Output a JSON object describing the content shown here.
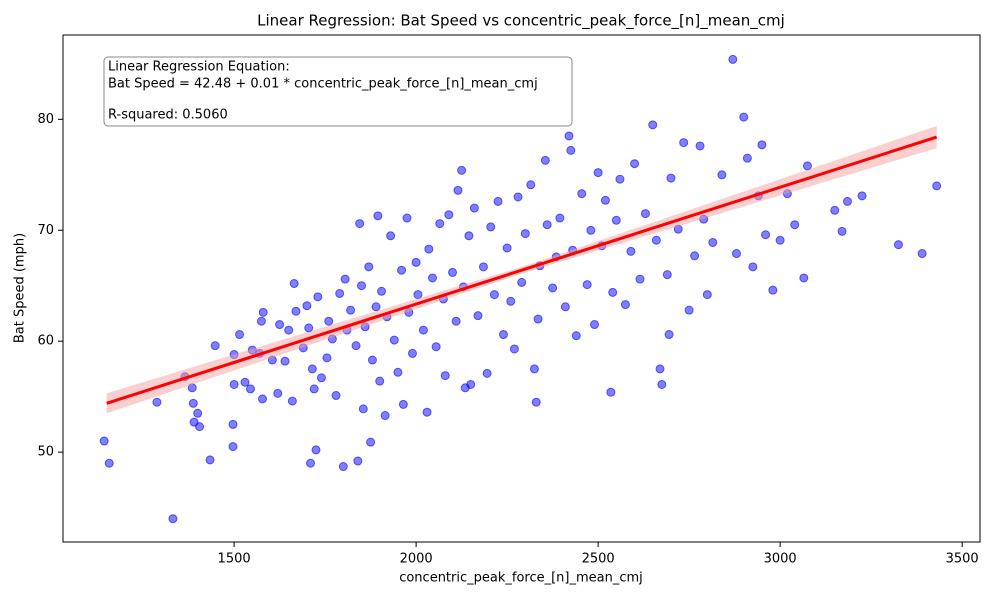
{
  "chart_data": {
    "type": "scatter",
    "title": "Linear Regression: Bat Speed vs concentric_peak_force_[n]_mean_cmj",
    "x_label": "concentric_peak_force_[n]_mean_cmj",
    "y_label": "Bat Speed (mph)",
    "annotation": [
      "Linear Regression Equation:",
      "Bat Speed = 42.48 + 0.01 * concentric_peak_force_[n]_mean_cmj",
      "R-squared: 0.5060"
    ],
    "xlim": [
      1030,
      3549
    ],
    "ylim": [
      41.9,
      87.6
    ],
    "xticks": [
      1500,
      2000,
      2500,
      3000,
      3500
    ],
    "yticks": [
      50,
      60,
      70,
      80
    ],
    "color": "blue",
    "x": [
      1143,
      1157,
      1288,
      1332,
      1365,
      1385,
      1388,
      1390,
      1400,
      1405,
      1434,
      1448,
      1497,
      1497,
      1500,
      1500,
      1515,
      1530,
      1545,
      1550,
      1570,
      1575,
      1580,
      1578,
      1605,
      1620,
      1625,
      1640,
      1650,
      1660,
      1665,
      1670,
      1690,
      1700,
      1705,
      1710,
      1715,
      1720,
      1725,
      1730,
      1740,
      1755,
      1760,
      1770,
      1780,
      1790,
      1800,
      1805,
      1810,
      1820,
      1835,
      1840,
      1845,
      1850,
      1855,
      1860,
      1870,
      1875,
      1880,
      1890,
      1895,
      1900,
      1905,
      1915,
      1920,
      1930,
      1940,
      1950,
      1960,
      1965,
      1975,
      1980,
      1990,
      2000,
      2005,
      2020,
      2030,
      2035,
      2045,
      2055,
      2065,
      2075,
      2080,
      2090,
      2100,
      2110,
      2115,
      2125,
      2130,
      2135,
      2145,
      2150,
      2160,
      2170,
      2185,
      2195,
      2205,
      2215,
      2225,
      2240,
      2250,
      2260,
      2270,
      2280,
      2290,
      2300,
      2315,
      2325,
      2330,
      2335,
      2340,
      2355,
      2360,
      2375,
      2385,
      2395,
      2410,
      2420,
      2425,
      2430,
      2440,
      2455,
      2470,
      2480,
      2490,
      2500,
      2510,
      2520,
      2535,
      2540,
      2550,
      2560,
      2575,
      2590,
      2600,
      2615,
      2630,
      2650,
      2660,
      2670,
      2675,
      2690,
      2695,
      2700,
      2720,
      2735,
      2750,
      2765,
      2780,
      2790,
      2800,
      2815,
      2840,
      2870,
      2880,
      2900,
      2910,
      2925,
      2940,
      2950,
      2960,
      2980,
      3000,
      3020,
      3040,
      3065,
      3075,
      3150,
      3170,
      3185,
      3225,
      3325,
      3390,
      3430
    ],
    "values": [
      51.0,
      49.0,
      54.5,
      44.0,
      56.8,
      55.8,
      54.4,
      52.7,
      53.5,
      52.3,
      49.3,
      59.6,
      52.5,
      50.5,
      56.1,
      58.8,
      60.6,
      56.3,
      55.7,
      59.2,
      58.9,
      61.8,
      62.6,
      54.8,
      58.3,
      55.3,
      61.5,
      58.2,
      61.0,
      54.6,
      65.2,
      62.7,
      59.4,
      63.2,
      61.2,
      49.0,
      57.5,
      55.7,
      50.2,
      64.0,
      56.7,
      58.5,
      61.8,
      60.2,
      55.1,
      64.3,
      48.7,
      65.6,
      61.0,
      62.8,
      59.6,
      49.2,
      70.6,
      65.0,
      53.9,
      61.3,
      66.7,
      50.9,
      58.3,
      63.1,
      71.3,
      56.4,
      64.5,
      53.3,
      62.2,
      69.5,
      60.1,
      57.2,
      66.4,
      54.3,
      71.1,
      62.6,
      58.9,
      67.1,
      64.2,
      61.0,
      53.6,
      68.3,
      65.7,
      59.5,
      70.6,
      63.8,
      56.9,
      71.4,
      66.2,
      61.8,
      73.6,
      75.4,
      64.9,
      55.8,
      69.5,
      56.1,
      72.0,
      62.3,
      66.7,
      57.1,
      70.3,
      64.2,
      72.6,
      60.6,
      68.4,
      63.6,
      59.3,
      73.0,
      65.3,
      69.7,
      74.1,
      57.5,
      54.5,
      62.0,
      66.8,
      76.3,
      70.5,
      64.8,
      67.6,
      71.1,
      63.1,
      78.5,
      77.2,
      68.2,
      60.5,
      73.3,
      65.1,
      70.0,
      61.5,
      75.2,
      68.6,
      72.7,
      55.4,
      64.4,
      70.9,
      74.6,
      63.3,
      68.1,
      76.0,
      65.6,
      71.5,
      79.5,
      69.1,
      57.5,
      56.1,
      66.0,
      60.6,
      74.7,
      70.1,
      77.9,
      62.8,
      67.7,
      77.6,
      71.0,
      64.2,
      68.9,
      75.0,
      85.4,
      67.9,
      80.2,
      76.5,
      66.7,
      73.1,
      77.7,
      69.6,
      64.6,
      69.1,
      73.3,
      70.5,
      65.7,
      75.8,
      71.8,
      69.9,
      72.6,
      73.1,
      68.7,
      67.9,
      74.0
    ],
    "fit": {
      "x": [
        1150,
        3430
      ],
      "y": [
        54.4,
        78.4
      ],
      "color": "red"
    },
    "band": {
      "x": [
        1150,
        2300,
        3430
      ],
      "lower": [
        53.5,
        66.2,
        77.4
      ],
      "upper": [
        55.3,
        66.8,
        79.4
      ],
      "color": "#f4a0a0"
    }
  }
}
